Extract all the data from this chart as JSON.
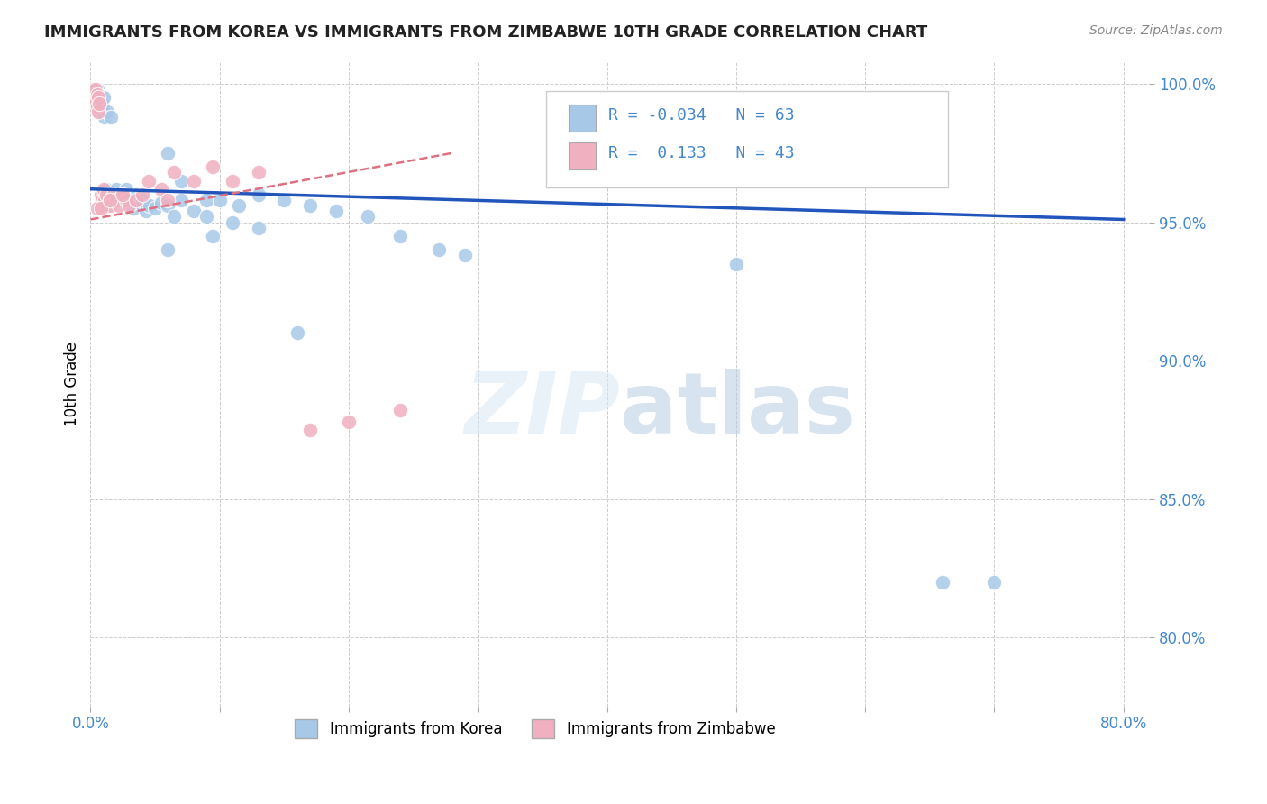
{
  "title": "IMMIGRANTS FROM KOREA VS IMMIGRANTS FROM ZIMBABWE 10TH GRADE CORRELATION CHART",
  "source": "Source: ZipAtlas.com",
  "ylabel": "10th Grade",
  "xlim": [
    0.0,
    0.82
  ],
  "ylim": [
    0.775,
    1.008
  ],
  "korea_R": -0.034,
  "korea_N": 63,
  "zimbabwe_R": 0.133,
  "zimbabwe_N": 43,
  "korea_color": "#a8c8e8",
  "zimbabwe_color": "#f0b0c0",
  "korea_line_color": "#2255bb",
  "zimbabwe_line_color": "#e07080",
  "title_color": "#222222",
  "source_color": "#888888",
  "axis_color": "#4488cc",
  "watermark_color": "#cce0f5",
  "korea_line_y0": 0.962,
  "korea_line_y1": 0.951,
  "zimbabwe_line_y0": 0.951,
  "zimbabwe_line_y1": 0.975,
  "zimbabwe_line_x1": 0.28,
  "korea_x": [
    0.001,
    0.002,
    0.002,
    0.003,
    0.003,
    0.004,
    0.004,
    0.005,
    0.005,
    0.006,
    0.006,
    0.007,
    0.007,
    0.008,
    0.008,
    0.009,
    0.01,
    0.01,
    0.011,
    0.012,
    0.013,
    0.015,
    0.016,
    0.018,
    0.02,
    0.022,
    0.025,
    0.028,
    0.03,
    0.033,
    0.036,
    0.038,
    0.04,
    0.043,
    0.046,
    0.05,
    0.055,
    0.06,
    0.065,
    0.07,
    0.08,
    0.09,
    0.1,
    0.115,
    0.13,
    0.15,
    0.17,
    0.19,
    0.215,
    0.24,
    0.27,
    0.06,
    0.16,
    0.29,
    0.5,
    0.07,
    0.09,
    0.11,
    0.13,
    0.66,
    0.7,
    0.06,
    0.095
  ],
  "korea_y": [
    0.998,
    0.996,
    0.993,
    0.998,
    0.995,
    0.996,
    0.992,
    0.998,
    0.993,
    0.996,
    0.992,
    0.994,
    0.99,
    0.995,
    0.991,
    0.993,
    0.995,
    0.99,
    0.988,
    0.962,
    0.99,
    0.96,
    0.988,
    0.958,
    0.962,
    0.958,
    0.96,
    0.962,
    0.958,
    0.955,
    0.96,
    0.957,
    0.958,
    0.954,
    0.956,
    0.955,
    0.957,
    0.956,
    0.952,
    0.958,
    0.954,
    0.958,
    0.958,
    0.956,
    0.96,
    0.958,
    0.956,
    0.954,
    0.952,
    0.945,
    0.94,
    0.94,
    0.91,
    0.938,
    0.935,
    0.965,
    0.952,
    0.95,
    0.948,
    0.82,
    0.82,
    0.975,
    0.945
  ],
  "zimbabwe_x": [
    0.001,
    0.002,
    0.002,
    0.003,
    0.003,
    0.004,
    0.004,
    0.005,
    0.005,
    0.006,
    0.006,
    0.007,
    0.008,
    0.009,
    0.01,
    0.011,
    0.012,
    0.013,
    0.015,
    0.016,
    0.018,
    0.02,
    0.022,
    0.025,
    0.028,
    0.03,
    0.035,
    0.04,
    0.045,
    0.055,
    0.065,
    0.08,
    0.095,
    0.11,
    0.13,
    0.005,
    0.008,
    0.015,
    0.025,
    0.06,
    0.17,
    0.2,
    0.24
  ],
  "zimbabwe_y": [
    0.996,
    0.998,
    0.993,
    0.996,
    0.992,
    0.998,
    0.993,
    0.996,
    0.992,
    0.995,
    0.99,
    0.993,
    0.96,
    0.958,
    0.962,
    0.958,
    0.96,
    0.956,
    0.958,
    0.956,
    0.96,
    0.958,
    0.956,
    0.96,
    0.958,
    0.956,
    0.958,
    0.96,
    0.965,
    0.962,
    0.968,
    0.965,
    0.97,
    0.965,
    0.968,
    0.955,
    0.955,
    0.958,
    0.96,
    0.958,
    0.875,
    0.878,
    0.882
  ]
}
